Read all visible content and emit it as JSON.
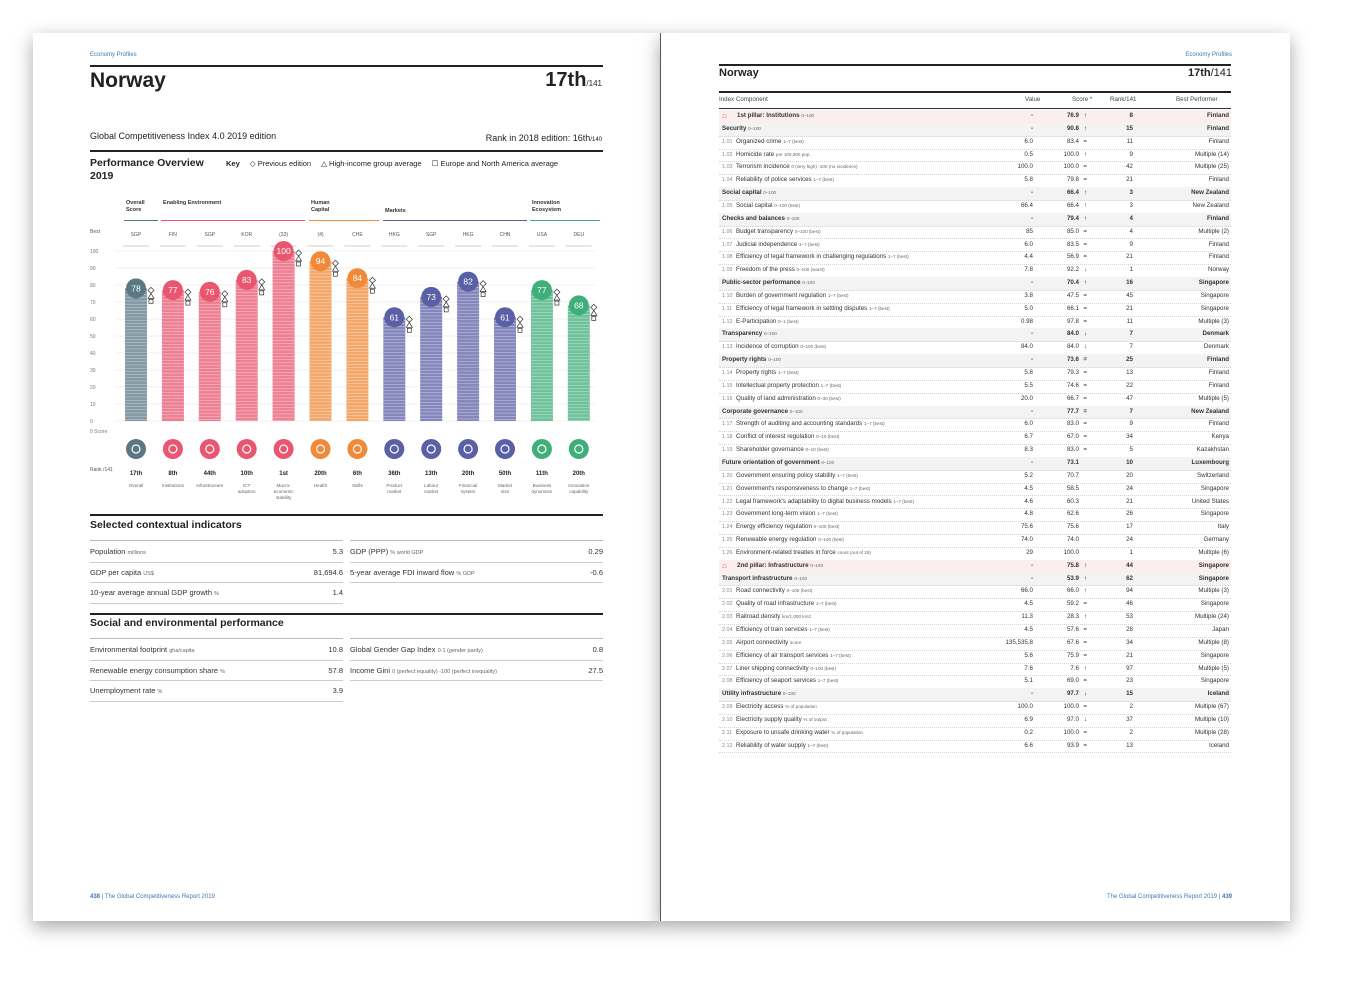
{
  "left_page": {
    "header_label": "Economy Profiles",
    "country": "Norway",
    "rank_main": "17th",
    "rank_total": "/141",
    "gci_edition": "Global Competitiveness Index 4.0 2019 edition",
    "rank_2018": "Rank in 2018 edition: 16th",
    "rank_2018_total": "/140",
    "perf_title": "Performance Overview",
    "perf_year": "2019",
    "key_label": "Key",
    "key_items": [
      "Previous edition",
      "High-income group average",
      "Europe and North America average"
    ],
    "best_label": "Best",
    "score_label": "0 Score",
    "rank_label": "Rank /141",
    "axis_ticks": [
      "100",
      "90",
      "80",
      "70",
      "60",
      "50",
      "40",
      "30",
      "20",
      "10",
      "0"
    ],
    "groups": [
      {
        "label": "Overall Score"
      },
      {
        "label": "Enabling Environment"
      },
      {
        "label": "Human Capital"
      },
      {
        "label": "Markets"
      },
      {
        "label": "Innovation Ecosystem"
      }
    ],
    "pillars": [
      {
        "code": "SGP",
        "score": "78",
        "value": 78,
        "rank": "17th",
        "name": "Overall",
        "color": "#5a7784",
        "icon": "overall-icon"
      },
      {
        "code": "FIN",
        "score": "77",
        "value": 77,
        "rank": "8th",
        "name": "Institutions",
        "color": "#e8566f",
        "icon": "institutions-icon"
      },
      {
        "code": "SGP",
        "score": "76",
        "value": 76,
        "rank": "44th",
        "name": "Infrastructure",
        "color": "#e8566f",
        "icon": "infrastructure-icon"
      },
      {
        "code": "KOR",
        "score": "83",
        "value": 83,
        "rank": "10th",
        "name": "ICT adoption",
        "color": "#e8566f",
        "icon": "ict-icon"
      },
      {
        "code": "(33)",
        "score": "100",
        "value": 100,
        "rank": "1st",
        "name": "Macro-economic stability",
        "color": "#e8566f",
        "icon": "macro-icon"
      },
      {
        "code": "(4)",
        "score": "94",
        "value": 94,
        "rank": "20th",
        "name": "Health",
        "color": "#f08a3a",
        "icon": "health-icon"
      },
      {
        "code": "CHE",
        "score": "84",
        "value": 84,
        "rank": "6th",
        "name": "Skills",
        "color": "#f08a3a",
        "icon": "skills-icon"
      },
      {
        "code": "HKG",
        "score": "61",
        "value": 61,
        "rank": "36th",
        "name": "Product market",
        "color": "#5b5fa6",
        "icon": "product-market-icon"
      },
      {
        "code": "SGP",
        "score": "73",
        "value": 73,
        "rank": "13th",
        "name": "Labour market",
        "color": "#5b5fa6",
        "icon": "labour-market-icon"
      },
      {
        "code": "HKG",
        "score": "82",
        "value": 82,
        "rank": "20th",
        "name": "Financial system",
        "color": "#5b5fa6",
        "icon": "financial-icon"
      },
      {
        "code": "CHN",
        "score": "61",
        "value": 61,
        "rank": "50th",
        "name": "Market size",
        "color": "#5b5fa6",
        "icon": "market-size-icon"
      },
      {
        "code": "USA",
        "score": "77",
        "value": 77,
        "rank": "11th",
        "name": "Business dynamism",
        "color": "#3fae7a",
        "icon": "business-icon"
      },
      {
        "code": "DEU",
        "score": "68",
        "value": 68,
        "rank": "20th",
        "name": "Innovation capability",
        "color": "#3fae7a",
        "icon": "innovation-icon"
      }
    ],
    "contextual_title": "Selected contextual indicators",
    "contextual_left": [
      {
        "label": "Population",
        "unit": "millions",
        "value": "5.3"
      },
      {
        "label": "GDP per capita",
        "unit": "US$",
        "value": "81,694.6"
      },
      {
        "label": "10-year average annual GDP growth",
        "unit": "%",
        "value": "1.4"
      }
    ],
    "contextual_right": [
      {
        "label": "GDP (PPP)",
        "unit": "% world GDP",
        "value": "0.29"
      },
      {
        "label": "5-year average FDI inward flow",
        "unit": "% GDP",
        "value": "-0.6"
      }
    ],
    "social_title": "Social and environmental performance",
    "social_left": [
      {
        "label": "Environmental footprint",
        "unit": "gha/capita",
        "value": "10.8"
      },
      {
        "label": "Renewable energy consumption share",
        "unit": "%",
        "value": "57.8"
      },
      {
        "label": "Unemployment rate",
        "unit": "%",
        "value": "3.9"
      }
    ],
    "social_right": [
      {
        "label": "Global Gender Gap Index",
        "unit": "0-1 (gender parity)",
        "value": "0.8"
      },
      {
        "label": "Income Gini",
        "unit": "0 (perfect equality) -100 (perfect inequality)",
        "value": "27.5"
      }
    ],
    "footer_page": "438",
    "footer_text": "The Global Competitiveness Report 2019"
  },
  "right_page": {
    "header_label": "Economy Profiles",
    "country": "Norway",
    "rank": "17th",
    "rank_total": "/141",
    "columns": [
      "Index Component",
      "Value",
      "Score *",
      "Rank/141",
      "Best Performer"
    ],
    "rows": [
      {
        "t": "pillar",
        "code": "",
        "name": "1st pillar: Institutions",
        "unit": "0–100",
        "value": "-",
        "score": "76.9",
        "trend": "↑",
        "rank": "8",
        "best": "Finland"
      },
      {
        "t": "sub",
        "code": "",
        "name": "Security",
        "unit": "0–100",
        "value": "-",
        "score": "90.8",
        "trend": "↑",
        "rank": "15",
        "best": "Finland"
      },
      {
        "t": "row",
        "code": "1.01",
        "name": "Organized crime",
        "unit": "1–7 (best)",
        "value": "6.0",
        "score": "83.4",
        "trend": "=",
        "rank": "11",
        "best": "Finland"
      },
      {
        "t": "row",
        "code": "1.02",
        "name": "Homicide rate",
        "unit": "per 100,000 pop.",
        "value": "0.5",
        "score": "100.0",
        "trend": "↑",
        "rank": "9",
        "best": "Multiple (14)"
      },
      {
        "t": "row",
        "code": "1.03",
        "name": "Terrorism incidence",
        "unit": "0 (very high) -100 (no incidence)",
        "value": "100.0",
        "score": "100.0",
        "trend": "=",
        "rank": "42",
        "best": "Multiple (25)"
      },
      {
        "t": "row",
        "code": "1.04",
        "name": "Reliability of police services",
        "unit": "1–7 (best)",
        "value": "5.8",
        "score": "79.8",
        "trend": "=",
        "rank": "21",
        "best": "Finland"
      },
      {
        "t": "sub",
        "code": "",
        "name": "Social capital",
        "unit": "0–100",
        "value": "-",
        "score": "66.4",
        "trend": "↑",
        "rank": "3",
        "best": "New Zealand"
      },
      {
        "t": "row",
        "code": "1.05",
        "name": "Social capital",
        "unit": "0–100 (best)",
        "value": "66.4",
        "score": "66.4",
        "trend": "↑",
        "rank": "3",
        "best": "New Zealand"
      },
      {
        "t": "sub",
        "code": "",
        "name": "Checks and balances",
        "unit": "0–100",
        "value": "-",
        "score": "79.4",
        "trend": "↑",
        "rank": "4",
        "best": "Finland"
      },
      {
        "t": "row",
        "code": "1.06",
        "name": "Budget transparency",
        "unit": "0–100 (best)",
        "value": "85",
        "score": "85.0",
        "trend": "=",
        "rank": "4",
        "best": "Multiple (2)"
      },
      {
        "t": "row",
        "code": "1.07",
        "name": "Judicial independence",
        "unit": "1–7 (best)",
        "value": "6.0",
        "score": "83.5",
        "trend": "=",
        "rank": "9",
        "best": "Finland"
      },
      {
        "t": "row",
        "code": "1.08",
        "name": "Efficiency of legal framework in challenging regulations",
        "unit": "1–7 (best)",
        "value": "4.4",
        "score": "56.9",
        "trend": "=",
        "rank": "21",
        "best": "Finland"
      },
      {
        "t": "row",
        "code": "1.09",
        "name": "Freedom of the press",
        "unit": "0–100 (worst)",
        "value": "7.8",
        "score": "92.2",
        "trend": "↓",
        "rank": "1",
        "best": "Norway"
      },
      {
        "t": "sub",
        "code": "",
        "name": "Public-sector performance",
        "unit": "0–100",
        "value": "-",
        "score": "70.4",
        "trend": "↑",
        "rank": "16",
        "best": "Singapore"
      },
      {
        "t": "row",
        "code": "1.10",
        "name": "Burden of government regulation",
        "unit": "1–7 (best)",
        "value": "3.8",
        "score": "47.5",
        "trend": "=",
        "rank": "45",
        "best": "Singapore"
      },
      {
        "t": "row",
        "code": "1.11",
        "name": "Efficiency of legal framework in settling disputes",
        "unit": "1–7 (best)",
        "value": "5.0",
        "score": "66.1",
        "trend": "=",
        "rank": "21",
        "best": "Singapore"
      },
      {
        "t": "row",
        "code": "1.12",
        "name": "E-Participation",
        "unit": "0–1 (best)",
        "value": "0.98",
        "score": "97.8",
        "trend": "=",
        "rank": "11",
        "best": "Multiple (3)"
      },
      {
        "t": "sub",
        "code": "",
        "name": "Transparency",
        "unit": "0–100",
        "value": "-",
        "score": "84.0",
        "trend": "↓",
        "rank": "7",
        "best": "Denmark"
      },
      {
        "t": "row",
        "code": "1.13",
        "name": "Incidence of corruption",
        "unit": "0–100 (best)",
        "value": "84.0",
        "score": "84.0",
        "trend": "↓",
        "rank": "7",
        "best": "Denmark"
      },
      {
        "t": "sub",
        "code": "",
        "name": "Property rights",
        "unit": "0–100",
        "value": "-",
        "score": "73.6",
        "trend": "=",
        "rank": "25",
        "best": "Finland"
      },
      {
        "t": "row",
        "code": "1.14",
        "name": "Property rights",
        "unit": "1–7 (best)",
        "value": "5.8",
        "score": "79.3",
        "trend": "=",
        "rank": "13",
        "best": "Finland"
      },
      {
        "t": "row",
        "code": "1.15",
        "name": "Intellectual property protection",
        "unit": "1–7 (best)",
        "value": "5.5",
        "score": "74.6",
        "trend": "=",
        "rank": "22",
        "best": "Finland"
      },
      {
        "t": "row",
        "code": "1.16",
        "name": "Quality of land administration",
        "unit": "0–30 (best)",
        "value": "20.0",
        "score": "66.7",
        "trend": "=",
        "rank": "47",
        "best": "Multiple (5)"
      },
      {
        "t": "sub",
        "code": "",
        "name": "Corporate governance",
        "unit": "0–100",
        "value": "-",
        "score": "77.7",
        "trend": "=",
        "rank": "7",
        "best": "New Zealand"
      },
      {
        "t": "row",
        "code": "1.17",
        "name": "Strength of auditing and accounting standards",
        "unit": "1–7 (best)",
        "value": "6.0",
        "score": "83.0",
        "trend": "=",
        "rank": "9",
        "best": "Finland"
      },
      {
        "t": "row",
        "code": "1.18",
        "name": "Conflict of interest regulation",
        "unit": "0–10 (best)",
        "value": "6.7",
        "score": "67.0",
        "trend": "=",
        "rank": "34",
        "best": "Kenya"
      },
      {
        "t": "row",
        "code": "1.19",
        "name": "Shareholder governance",
        "unit": "0–10 (best)",
        "value": "8.3",
        "score": "83.0",
        "trend": "=",
        "rank": "5",
        "best": "Kazakhstan"
      },
      {
        "t": "sub",
        "code": "",
        "name": "Future orientation of government",
        "unit": "0–100",
        "value": "-",
        "score": "73.1",
        "trend": "",
        "rank": "10",
        "best": "Luxembourg"
      },
      {
        "t": "row",
        "code": "1.20",
        "name": "Government ensuring policy stability",
        "unit": "1–7 (best)",
        "value": "5.2",
        "score": "70.7",
        "trend": "",
        "rank": "20",
        "best": "Switzerland"
      },
      {
        "t": "row",
        "code": "1.21",
        "name": "Government's responsiveness to change",
        "unit": "1–7 (best)",
        "value": "4.5",
        "score": "58.5",
        "trend": "",
        "rank": "24",
        "best": "Singapore"
      },
      {
        "t": "row",
        "code": "1.22",
        "name": "Legal framework's adaptability to digital business models",
        "unit": "1–7 (best)",
        "value": "4.6",
        "score": "60.3",
        "trend": "",
        "rank": "21",
        "best": "United States"
      },
      {
        "t": "row",
        "code": "1.23",
        "name": "Government long-term vision",
        "unit": "1–7 (best)",
        "value": "4.8",
        "score": "62.6",
        "trend": "",
        "rank": "26",
        "best": "Singapore"
      },
      {
        "t": "row",
        "code": "1.24",
        "name": "Energy efficiency regulation",
        "unit": "0–100 (best)",
        "value": "75.6",
        "score": "75.6",
        "trend": "",
        "rank": "17",
        "best": "Italy"
      },
      {
        "t": "row",
        "code": "1.25",
        "name": "Renewable energy regulation",
        "unit": "0–100 (best)",
        "value": "74.0",
        "score": "74.0",
        "trend": "",
        "rank": "24",
        "best": "Germany"
      },
      {
        "t": "row",
        "code": "1.26",
        "name": "Environment-related treaties in force",
        "unit": "count (out of 29)",
        "value": "29",
        "score": "100.0",
        "trend": "",
        "rank": "1",
        "best": "Multiple (6)"
      },
      {
        "t": "pillar",
        "code": "",
        "name": "2nd pillar: Infrastructure",
        "unit": "0–100",
        "value": "-",
        "score": "75.8",
        "trend": "↑",
        "rank": "44",
        "best": "Singapore"
      },
      {
        "t": "sub",
        "code": "",
        "name": "Transport infrastructure",
        "unit": "0–100",
        "value": "-",
        "score": "53.9",
        "trend": "↑",
        "rank": "62",
        "best": "Singapore"
      },
      {
        "t": "row",
        "code": "2.01",
        "name": "Road connectivity",
        "unit": "0–100 (best)",
        "value": "66.0",
        "score": "66.0",
        "trend": "↑",
        "rank": "94",
        "best": "Multiple (3)"
      },
      {
        "t": "row",
        "code": "2.02",
        "name": "Quality of road infrastructure",
        "unit": "1–7 (best)",
        "value": "4.5",
        "score": "59.2",
        "trend": "=",
        "rank": "46",
        "best": "Singapore"
      },
      {
        "t": "row",
        "code": "2.03",
        "name": "Railroad density",
        "unit": "km/1,000 km2",
        "value": "11.3",
        "score": "28.3",
        "trend": "↑",
        "rank": "53",
        "best": "Multiple (24)"
      },
      {
        "t": "row",
        "code": "2.04",
        "name": "Efficiency of train services",
        "unit": "1–7 (best)",
        "value": "4.5",
        "score": "57.6",
        "trend": "=",
        "rank": "28",
        "best": "Japan"
      },
      {
        "t": "row",
        "code": "2.05",
        "name": "Airport connectivity",
        "unit": "score",
        "value": "135,535.8",
        "score": "67.6",
        "trend": "=",
        "rank": "34",
        "best": "Multiple (8)"
      },
      {
        "t": "row",
        "code": "2.06",
        "name": "Efficiency of air transport services",
        "unit": "1–7 (best)",
        "value": "5.6",
        "score": "75.9",
        "trend": "=",
        "rank": "21",
        "best": "Singapore"
      },
      {
        "t": "row",
        "code": "2.07",
        "name": "Liner shipping connectivity",
        "unit": "0–100 (best)",
        "value": "7.6",
        "score": "7.6",
        "trend": "↑",
        "rank": "97",
        "best": "Multiple (5)"
      },
      {
        "t": "row",
        "code": "2.08",
        "name": "Efficiency of seaport services",
        "unit": "1–7 (best)",
        "value": "5.1",
        "score": "69.0",
        "trend": "=",
        "rank": "23",
        "best": "Singapore"
      },
      {
        "t": "sub",
        "code": "",
        "name": "Utility infrastructure",
        "unit": "0–100",
        "value": "-",
        "score": "97.7",
        "trend": "↓",
        "rank": "15",
        "best": "Iceland"
      },
      {
        "t": "row",
        "code": "2.09",
        "name": "Electricity access",
        "unit": "% of population",
        "value": "100.0",
        "score": "100.0",
        "trend": "=",
        "rank": "2",
        "best": "Multiple (67)"
      },
      {
        "t": "row",
        "code": "2.10",
        "name": "Electricity supply quality",
        "unit": "% of output",
        "value": "6.9",
        "score": "97.0",
        "trend": "↓",
        "rank": "37",
        "best": "Multiple (10)"
      },
      {
        "t": "row",
        "code": "2.11",
        "name": "Exposure to unsafe drinking water",
        "unit": "% of population",
        "value": "0.2",
        "score": "100.0",
        "trend": "=",
        "rank": "2",
        "best": "Multiple (28)"
      },
      {
        "t": "row",
        "code": "2.12",
        "name": "Reliability of water supply",
        "unit": "1–7 (best)",
        "value": "6.6",
        "score": "93.9",
        "trend": "=",
        "rank": "13",
        "best": "Iceland"
      }
    ],
    "footer_text": "The Global Competitiveness Report 2019",
    "footer_page": "439"
  }
}
